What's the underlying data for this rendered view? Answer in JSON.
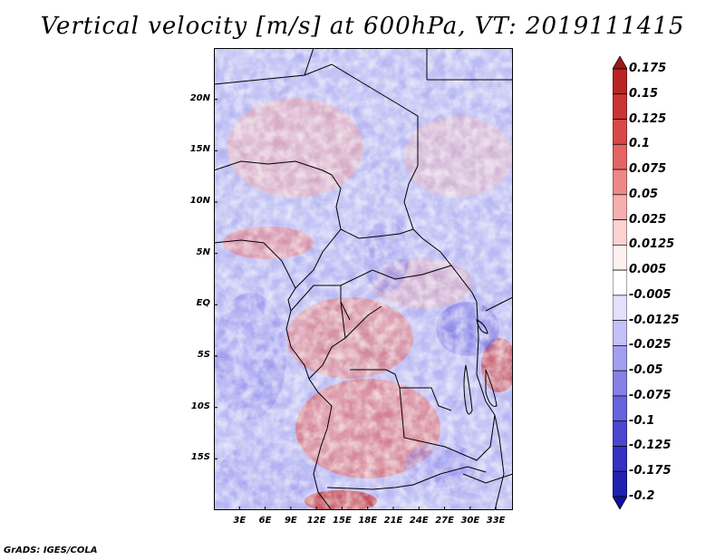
{
  "title": "Vertical velocity [m/s] at 600hPa, VT: 2019111415",
  "footer": "GrADS: IGES/COLA",
  "map": {
    "lat_labels": [
      "20N",
      "15N",
      "10N",
      "5N",
      "EQ",
      "5S",
      "10S",
      "15S"
    ],
    "lat_values": [
      20,
      15,
      10,
      5,
      0,
      -5,
      -10,
      -15
    ],
    "lon_labels": [
      "3E",
      "6E",
      "9E",
      "12E",
      "15E",
      "18E",
      "21E",
      "24E",
      "27E",
      "30E",
      "33E"
    ],
    "lon_values": [
      3,
      6,
      9,
      12,
      15,
      18,
      21,
      24,
      27,
      30,
      33
    ],
    "lon_range": [
      0,
      35
    ],
    "lat_range": [
      -20,
      25
    ]
  },
  "colorbar": {
    "labels": [
      "0.175",
      "0.15",
      "0.125",
      "0.1",
      "0.075",
      "0.05",
      "0.025",
      "0.0125",
      "0.005",
      "-0.005",
      "-0.0125",
      "-0.025",
      "-0.05",
      "-0.075",
      "-0.1",
      "-0.125",
      "-0.175",
      "-0.2"
    ],
    "colors": [
      "#a01818",
      "#b82424",
      "#c83434",
      "#d84848",
      "#e46464",
      "#ee8888",
      "#f6aeae",
      "#fbd2d2",
      "#fff0f0",
      "#ffffff",
      "#e4e0ff",
      "#c4c0f8",
      "#a49ef0",
      "#8680e6",
      "#6862dc",
      "#4c46d0",
      "#3430c2",
      "#2020b0",
      "#1010a0"
    ]
  },
  "colors": {
    "positive": "#e05050",
    "negative": "#5a5adc",
    "border": "#000000"
  }
}
